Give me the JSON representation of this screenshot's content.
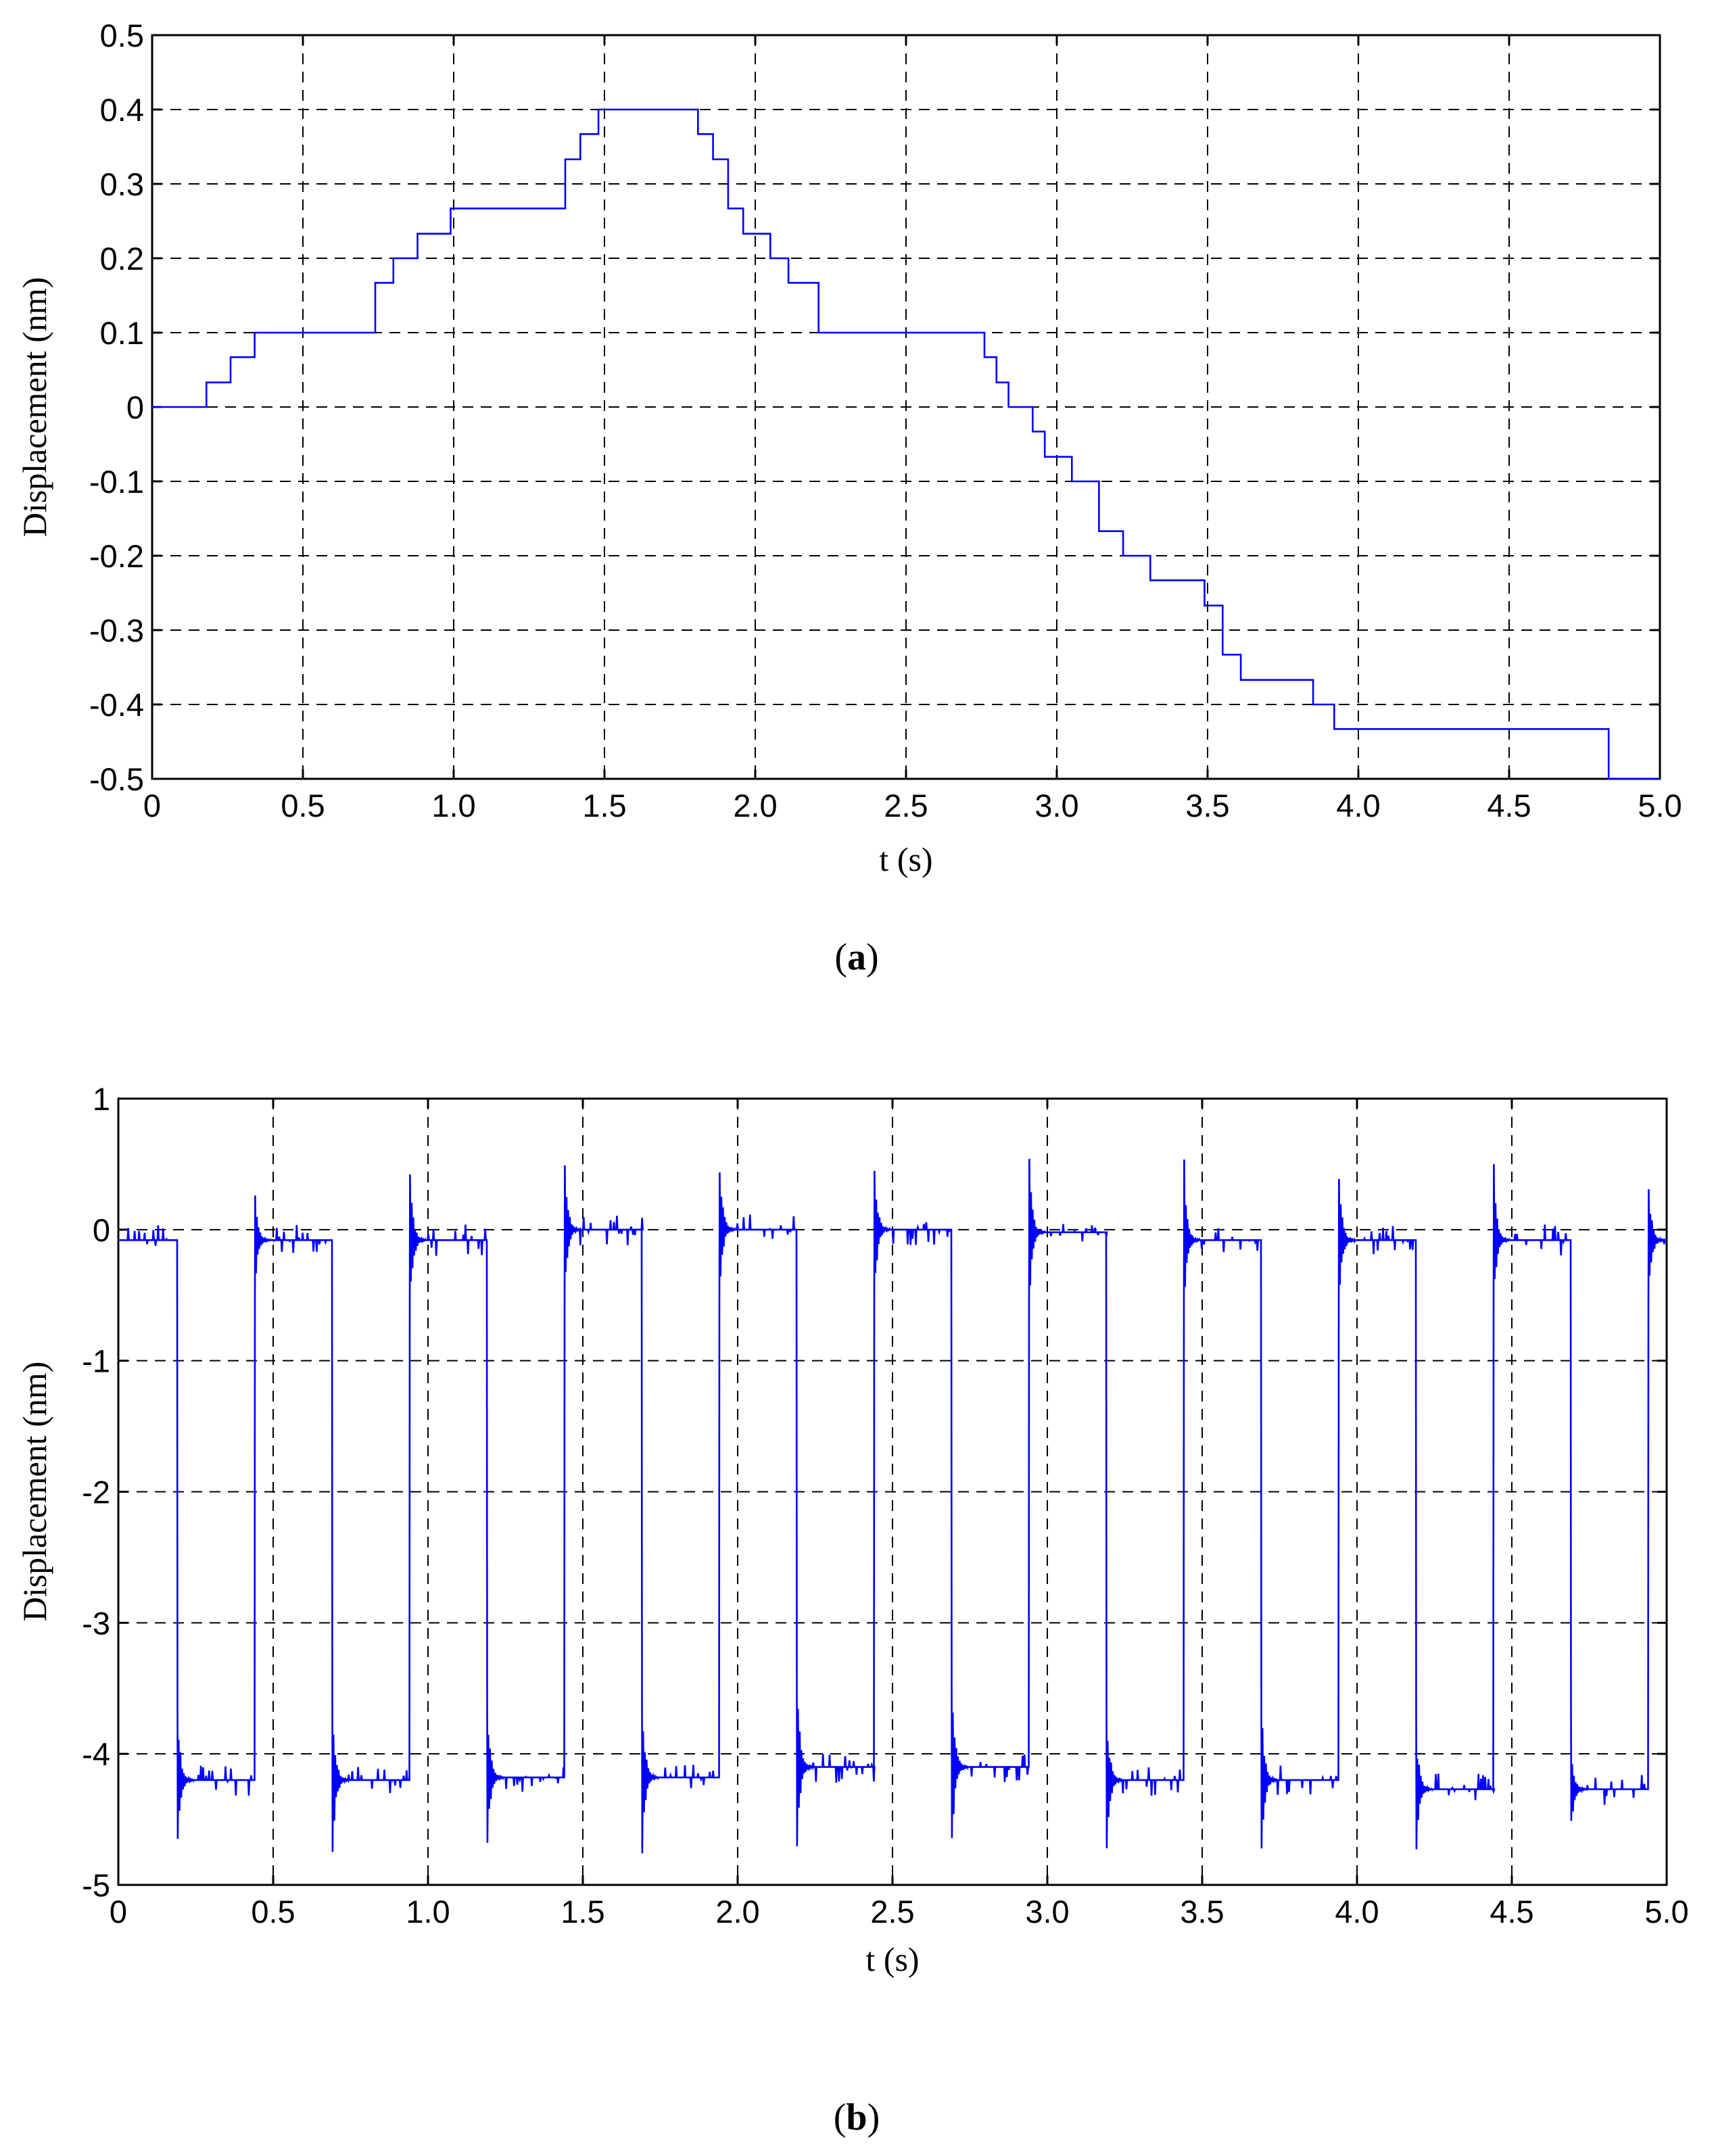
{
  "chart_data": [
    {
      "type": "line",
      "panel_label": "a",
      "xlabel": "t (s)",
      "ylabel": "Displacement (nm)",
      "xlim": [
        0,
        5.0
      ],
      "ylim": [
        -0.5,
        0.5
      ],
      "xticks": [
        "0",
        "0.5",
        "1.0",
        "1.5",
        "2.0",
        "2.5",
        "3.0",
        "3.5",
        "4.0",
        "4.5",
        "5.0"
      ],
      "yticks": [
        "0.5",
        "0.4",
        "0.3",
        "0.2",
        "0.1",
        "0",
        "-0.1",
        "-0.2",
        "-0.3",
        "-0.4",
        "-0.5"
      ],
      "grid": true,
      "line_color": "#0000ff",
      "step": true,
      "series": [
        {
          "x": [
            0,
            0.18,
            0.26,
            0.34,
            0.74,
            0.8,
            0.88,
            0.99,
            1.37,
            1.42,
            1.48,
            1.81,
            1.86,
            1.91,
            1.96,
            2.05,
            2.11,
            2.21,
            2.76,
            2.8,
            2.84,
            2.92,
            2.96,
            3.05,
            3.14,
            3.22,
            3.31,
            3.49,
            3.55,
            3.61,
            3.85,
            3.92,
            4.83,
            5.0
          ],
          "y": [
            0,
            0.033,
            0.067,
            0.1,
            0.167,
            0.2,
            0.233,
            0.267,
            0.333,
            0.367,
            0.4,
            0.367,
            0.333,
            0.267,
            0.233,
            0.2,
            0.167,
            0.1,
            0.067,
            0.033,
            0,
            -0.033,
            -0.067,
            -0.1,
            -0.167,
            -0.2,
            -0.233,
            -0.267,
            -0.333,
            -0.367,
            -0.4,
            -0.433,
            -0.5,
            -0.5
          ]
        }
      ]
    },
    {
      "type": "line",
      "panel_label": "b",
      "xlabel": "t (s)",
      "ylabel": "Displacement (nm)",
      "xlim": [
        0,
        5.0
      ],
      "ylim": [
        -5,
        1
      ],
      "xticks": [
        "0",
        "0.5",
        "1.0",
        "1.5",
        "2.0",
        "2.5",
        "3.0",
        "3.5",
        "4.0",
        "4.5",
        "5.0"
      ],
      "yticks": [
        "1",
        "0",
        "-1",
        "-2",
        "-3",
        "-4",
        "-5"
      ],
      "grid": true,
      "line_color": "#0000ff",
      "square_wave": {
        "period": 0.5,
        "falling_edge_offset": 0.19,
        "rising_edge_offset": 0.44,
        "high_levels": [
          -0.08,
          -0.08,
          -0.08,
          0,
          0,
          0,
          -0.02,
          -0.08,
          -0.08,
          -0.08
        ],
        "low_levels": [
          -4.2,
          -4.2,
          -4.18,
          -4.18,
          -4.1,
          -4.1,
          -4.2,
          -4.2,
          -4.27,
          -4.27
        ],
        "overshoot_peaks_high": [
          0.3,
          0.55,
          0.58,
          0.58,
          0.62,
          0.58,
          0.55,
          0.52,
          0.5,
          0.45
        ],
        "undershoot_peaks_low": [
          -4.75,
          -4.82,
          -4.82,
          -4.8,
          -4.8,
          -4.8,
          -4.82,
          -4.8,
          -4.75,
          -4.6
        ]
      }
    }
  ],
  "captions": [
    {
      "open": "(",
      "letter": "a",
      "close": ")"
    },
    {
      "open": "(",
      "letter": "b",
      "close": ")"
    }
  ]
}
